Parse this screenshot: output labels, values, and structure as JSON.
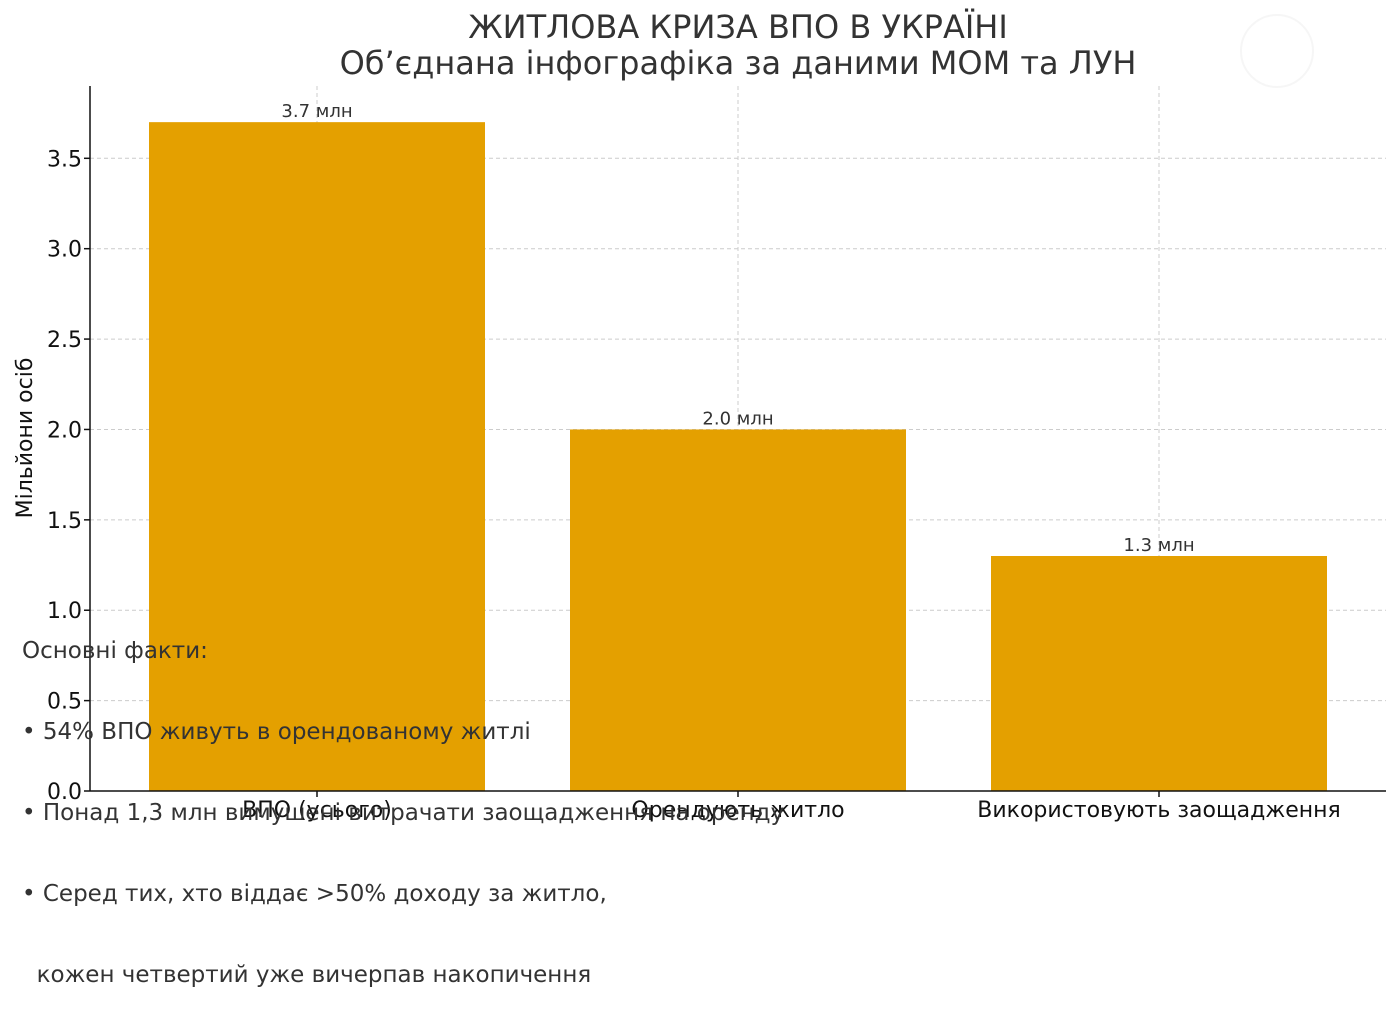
{
  "chart_data": {
    "type": "bar",
    "title": "ЖИТЛОВА КРИЗА ВПО В УКРАЇНІ",
    "subtitle": "Об’єднана інфографіка за даними МОМ та ЛУН",
    "ylabel": "Мільйони осіб",
    "xlabel": "",
    "categories": [
      "ВПО (усього)",
      "Орендують житло",
      "Використовують заощадження"
    ],
    "values": [
      3.7,
      2.0,
      1.3
    ],
    "data_labels": [
      "3.7 млн",
      "2.0 млн",
      "1.3 млн"
    ],
    "ylim": [
      0,
      3.9
    ],
    "yticks": [
      0.0,
      0.5,
      1.0,
      1.5,
      2.0,
      2.5,
      3.0,
      3.5
    ],
    "ytick_labels": [
      "0.0",
      "0.5",
      "1.0",
      "1.5",
      "2.0",
      "2.5",
      "3.0",
      "3.5"
    ],
    "grid": true,
    "bar_color": "#e4a000"
  },
  "facts": {
    "heading": "Основні факти:",
    "items": [
      "• 54% ВПО живуть в орендованому житлі",
      "• Понад 1,3 млн вимушені витрачати заощадження на оренду",
      "• Серед тих, хто віддає >50% доходу за житло,",
      "  кожен четвертий уже вичерпав накопичення"
    ]
  }
}
